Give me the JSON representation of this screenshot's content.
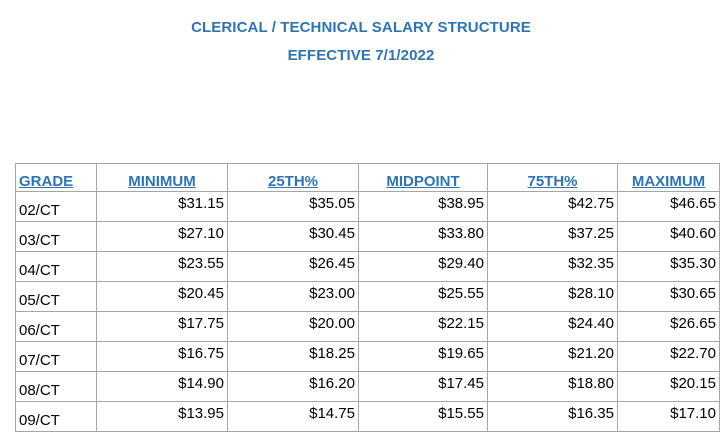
{
  "header": {
    "title": "CLERICAL / TECHNICAL SALARY STRUCTURE",
    "subtitle": "EFFECTIVE 7/1/2022"
  },
  "table": {
    "columns": [
      "GRADE",
      "MINIMUM",
      "25TH%",
      "MIDPOINT",
      "75TH%",
      "MAXIMUM"
    ],
    "rows": [
      [
        "02/CT",
        "$31.15",
        "$35.05",
        "$38.95",
        "$42.75",
        "$46.65"
      ],
      [
        "03/CT",
        "$27.10",
        "$30.45",
        "$33.80",
        "$37.25",
        "$40.60"
      ],
      [
        "04/CT",
        "$23.55",
        "$26.45",
        "$29.40",
        "$32.35",
        "$35.30"
      ],
      [
        "05/CT",
        "$20.45",
        "$23.00",
        "$25.55",
        "$28.10",
        "$30.65"
      ],
      [
        "06/CT",
        "$17.75",
        "$20.00",
        "$22.15",
        "$24.40",
        "$26.65"
      ],
      [
        "07/CT",
        "$16.75",
        "$18.25",
        "$19.65",
        "$21.20",
        "$22.70"
      ],
      [
        "08/CT",
        "$14.90",
        "$16.20",
        "$17.45",
        "$18.80",
        "$20.15"
      ],
      [
        "09/CT",
        "$13.95",
        "$14.75",
        "$15.55",
        "$16.35",
        "$17.10"
      ]
    ]
  },
  "colors": {
    "heading": "#2e74b5",
    "border": "#a6a6a6"
  }
}
